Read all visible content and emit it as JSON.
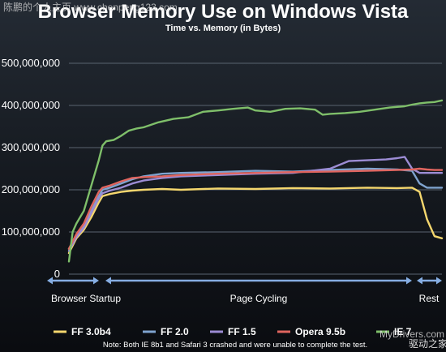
{
  "watermarks": {
    "top_left": "陈鹏的个人主页  www.chenpeng123.com",
    "bottom_right_url": "MyDrivers.com",
    "bottom_right_name": "驱动之家"
  },
  "chart_data": {
    "type": "line",
    "title": "Browser Memory Use on Windows Vista",
    "subtitle": "Time vs. Memory (in Bytes)",
    "ylim": [
      0,
      500000000
    ],
    "yticks": [
      0,
      100000000,
      200000000,
      300000000,
      400000000,
      500000000
    ],
    "ytick_labels": [
      "0",
      "100,000,000",
      "200,000,000",
      "300,000,000",
      "400,000,000",
      "500,000,000"
    ],
    "grid": true,
    "xlim": [
      0,
      100
    ],
    "phases": [
      {
        "label": "Browser Startup",
        "start": 0,
        "end": 11
      },
      {
        "label": "Page Cycling",
        "start": 11,
        "end": 92
      },
      {
        "label": "Rest",
        "start": 92,
        "end": 100
      }
    ],
    "legend_position": "bottom",
    "note": "Note: Both IE 8b1 and Safari 3 crashed and were unable to complete the test.",
    "series": [
      {
        "name": "FF 3.0b4",
        "color": "#f5d76e",
        "x": [
          0,
          2,
          4,
          6,
          8,
          9,
          11,
          14,
          17,
          20,
          25,
          30,
          40,
          50,
          60,
          70,
          80,
          88,
          92,
          94,
          96,
          98,
          100
        ],
        "y": [
          50000000,
          85000000,
          105000000,
          135000000,
          170000000,
          185000000,
          190000000,
          195000000,
          198000000,
          200000000,
          202000000,
          200000000,
          203000000,
          202000000,
          204000000,
          203000000,
          205000000,
          204000000,
          205000000,
          195000000,
          130000000,
          90000000,
          85000000
        ]
      },
      {
        "name": "FF 2.0",
        "color": "#7fa3cf",
        "x": [
          0,
          2,
          4,
          6,
          8,
          9,
          11,
          14,
          17,
          20,
          25,
          30,
          40,
          50,
          60,
          70,
          80,
          88,
          92,
          94,
          96,
          98,
          100
        ],
        "y": [
          60000000,
          90000000,
          115000000,
          150000000,
          185000000,
          200000000,
          205000000,
          215000000,
          225000000,
          232000000,
          238000000,
          240000000,
          242000000,
          245000000,
          243000000,
          247000000,
          250000000,
          248000000,
          245000000,
          215000000,
          205000000,
          205000000,
          205000000
        ]
      },
      {
        "name": "FF 1.5",
        "color": "#9c8cd4",
        "x": [
          0,
          2,
          4,
          6,
          8,
          9,
          11,
          14,
          17,
          20,
          25,
          30,
          40,
          50,
          60,
          70,
          75,
          80,
          85,
          88,
          90,
          92,
          94,
          96,
          98,
          100
        ],
        "y": [
          55000000,
          88000000,
          110000000,
          145000000,
          180000000,
          192000000,
          198000000,
          205000000,
          215000000,
          222000000,
          228000000,
          232000000,
          235000000,
          238000000,
          240000000,
          250000000,
          268000000,
          270000000,
          272000000,
          275000000,
          278000000,
          250000000,
          240000000,
          240000000,
          240000000,
          240000000
        ]
      },
      {
        "name": "Opera 9.5b",
        "color": "#e0655f",
        "x": [
          0,
          2,
          4,
          6,
          8,
          9,
          11,
          14,
          17,
          20,
          25,
          30,
          40,
          50,
          60,
          70,
          80,
          88,
          92,
          94,
          96,
          98,
          100
        ],
        "y": [
          60000000,
          95000000,
          120000000,
          160000000,
          195000000,
          205000000,
          210000000,
          220000000,
          228000000,
          230000000,
          232000000,
          235000000,
          238000000,
          240000000,
          242000000,
          243000000,
          245000000,
          247000000,
          248000000,
          250000000,
          248000000,
          247000000,
          247000000
        ]
      },
      {
        "name": "IE 7",
        "color": "#7fbf6a",
        "x": [
          0,
          1,
          2,
          4,
          6,
          8,
          9,
          10,
          12,
          14,
          16,
          18,
          20,
          24,
          28,
          32,
          36,
          40,
          44,
          48,
          50,
          54,
          58,
          62,
          66,
          68,
          70,
          74,
          78,
          82,
          86,
          90,
          92,
          94,
          96,
          98,
          100
        ],
        "y": [
          30000000,
          100000000,
          120000000,
          150000000,
          210000000,
          270000000,
          305000000,
          315000000,
          318000000,
          328000000,
          340000000,
          345000000,
          348000000,
          360000000,
          368000000,
          372000000,
          385000000,
          388000000,
          392000000,
          395000000,
          388000000,
          385000000,
          392000000,
          393000000,
          390000000,
          378000000,
          380000000,
          382000000,
          385000000,
          390000000,
          395000000,
          398000000,
          402000000,
          405000000,
          407000000,
          408000000,
          412000000
        ]
      }
    ]
  }
}
